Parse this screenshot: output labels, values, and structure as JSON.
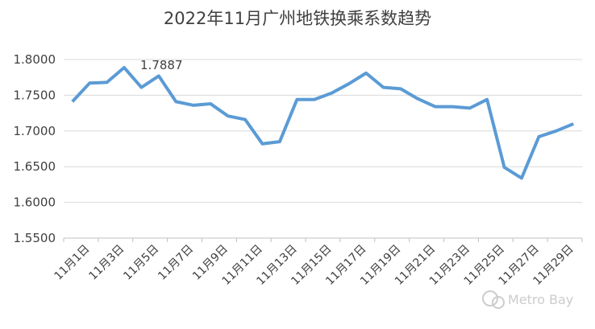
{
  "chart_data": {
    "type": "line",
    "title": "2022年11月广州地铁换乘系数趋势",
    "categories": [
      "11月1日",
      null,
      "11月3日",
      null,
      "11月5日",
      null,
      "11月7日",
      null,
      "11月9日",
      null,
      "11月11日",
      null,
      "11月13日",
      null,
      "11月15日",
      null,
      "11月17日",
      null,
      "11月19日",
      null,
      "11月21日",
      null,
      "11月23日",
      null,
      "11月25日",
      null,
      "11月27日",
      null,
      "11月29日",
      null
    ],
    "series": [
      {
        "name": "换乘系数",
        "color": "#5b9bd5",
        "values": [
          1.741,
          1.767,
          1.768,
          1.7887,
          1.761,
          1.777,
          1.741,
          1.736,
          1.738,
          1.721,
          1.716,
          1.682,
          1.685,
          1.744,
          1.744,
          1.753,
          1.766,
          1.781,
          1.761,
          1.759,
          1.745,
          1.734,
          1.734,
          1.732,
          1.744,
          1.649,
          1.634,
          1.692,
          1.7,
          1.71
        ]
      }
    ],
    "ylim": [
      1.55,
      1.8
    ],
    "yticks": [
      {
        "value": 1.55,
        "label": "1.5500"
      },
      {
        "value": 1.6,
        "label": "1.6000"
      },
      {
        "value": 1.65,
        "label": "1.6500"
      },
      {
        "value": 1.7,
        "label": "1.7000"
      },
      {
        "value": 1.75,
        "label": "1.7500"
      },
      {
        "value": 1.8,
        "label": "1.8000"
      }
    ],
    "grid": true,
    "watermark": "Metro Bay"
  }
}
